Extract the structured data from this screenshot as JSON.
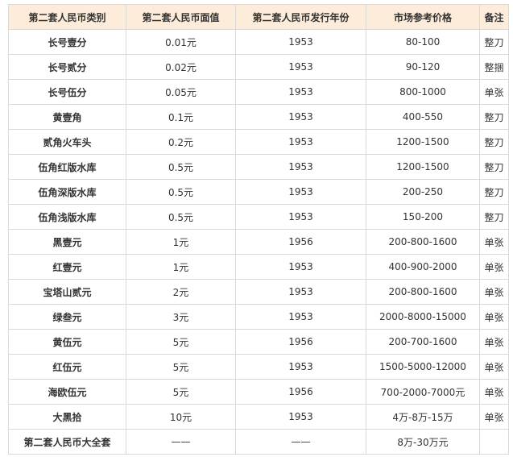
{
  "headers": [
    "第二套人民币类别",
    "第二套人民币面值",
    "第二套人民币发行年份",
    "市场参考价格",
    "备注"
  ],
  "rows": [
    {
      "name": "长号壹分",
      "face": "0.01元",
      "year": "1953",
      "price": "80-100",
      "note": "整刀"
    },
    {
      "name": "长号贰分",
      "face": "0.02元",
      "year": "1953",
      "price": "90-120",
      "note": "整捆"
    },
    {
      "name": "长号伍分",
      "face": "0.05元",
      "year": "1953",
      "price": "800-1000",
      "note": "单张"
    },
    {
      "name": "黄壹角",
      "face": "0.1元",
      "year": "1953",
      "price": "400-550",
      "note": "整刀"
    },
    {
      "name": "贰角火车头",
      "face": "0.2元",
      "year": "1953",
      "price": "1200-1500",
      "note": "整刀"
    },
    {
      "name": "伍角红版水库",
      "face": "0.5元",
      "year": "1953",
      "price": "1200-1500",
      "note": "整刀"
    },
    {
      "name": "伍角深版水库",
      "face": "0.5元",
      "year": "1953",
      "price": "200-250",
      "note": "整刀"
    },
    {
      "name": "伍角浅版水库",
      "face": "0.5元",
      "year": "1953",
      "price": "150-200",
      "note": "整刀"
    },
    {
      "name": "黑壹元",
      "face": "1元",
      "year": "1956",
      "price": "200-800-1600",
      "note": "单张"
    },
    {
      "name": "红壹元",
      "face": "1元",
      "year": "1953",
      "price": "400-900-2000",
      "note": "单张"
    },
    {
      "name": "宝塔山贰元",
      "face": "2元",
      "year": "1953",
      "price": "200-800-1600",
      "note": "单张"
    },
    {
      "name": "绿叁元",
      "face": "3元",
      "year": "1953",
      "price": "2000-8000-15000",
      "note": "单张"
    },
    {
      "name": "黄伍元",
      "face": "5元",
      "year": "1956",
      "price": "200-700-1600",
      "note": "单张"
    },
    {
      "name": "红伍元",
      "face": "5元",
      "year": "1953",
      "price": "1500-5000-12000",
      "note": "单张"
    },
    {
      "name": "海欧伍元",
      "face": "5元",
      "year": "1956",
      "price": "700-2000-7000元",
      "note": "单张"
    },
    {
      "name": "大黑拾",
      "face": "10元",
      "year": "1953",
      "price": "4万-8万-15万",
      "note": "单张"
    },
    {
      "name": "第二套人民币大全套",
      "face": "——",
      "year": "——",
      "price": "8万-30万元",
      "note": ""
    }
  ],
  "colors": {
    "header_bg": "#fdecd9",
    "border": "#d9d9d9",
    "text": "#333333"
  }
}
